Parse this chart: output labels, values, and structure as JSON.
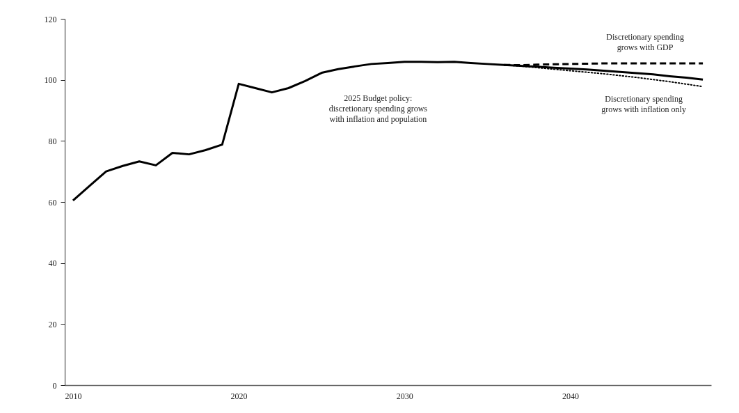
{
  "chart_data": {
    "type": "line",
    "x": [
      2010,
      2011,
      2012,
      2013,
      2014,
      2015,
      2016,
      2017,
      2018,
      2019,
      2020,
      2021,
      2022,
      2023,
      2024,
      2025,
      2026,
      2027,
      2028,
      2029,
      2030,
      2031,
      2032,
      2033,
      2034,
      2035,
      2036,
      2037,
      2038,
      2039,
      2040,
      2041,
      2042,
      2043,
      2044,
      2045,
      2046,
      2047,
      2048
    ],
    "series": [
      {
        "name": "2025 Budget policy:\ndiscretionary spending grows\nwith inflation and population",
        "color": "#000000",
        "line_style": "solid",
        "values": [
          60.5,
          65.3,
          70.0,
          71.8,
          73.3,
          72.0,
          76.1,
          75.6,
          77.0,
          78.8,
          98.7,
          97.3,
          95.9,
          97.3,
          99.6,
          102.3,
          103.5,
          104.4,
          105.2,
          105.5,
          105.9,
          105.9,
          105.8,
          105.9,
          105.5,
          105.2,
          104.9,
          104.6,
          104.3,
          104.0,
          103.7,
          103.4,
          103.0,
          102.6,
          102.2,
          101.8,
          101.2,
          100.7,
          100.1
        ]
      },
      {
        "name": "Discretionary spending\ngrows with GDP",
        "color": "#000000",
        "line_style": "dashed",
        "x": [
          2036,
          2037,
          2038,
          2039,
          2040,
          2041,
          2042,
          2043,
          2044,
          2045,
          2046,
          2047,
          2048
        ],
        "values": [
          104.9,
          104.8,
          105.0,
          105.1,
          105.2,
          105.3,
          105.4,
          105.4,
          105.4,
          105.4,
          105.4,
          105.4,
          105.4
        ]
      },
      {
        "name": "Discretionary spending\ngrows with inflation only",
        "color": "#000000",
        "line_style": "dotted",
        "x": [
          2036,
          2037,
          2038,
          2039,
          2040,
          2041,
          2042,
          2043,
          2044,
          2045,
          2046,
          2047,
          2048
        ],
        "values": [
          104.9,
          104.5,
          104.0,
          103.5,
          103.0,
          102.5,
          102.0,
          101.4,
          100.8,
          100.1,
          99.4,
          98.6,
          97.8
        ]
      }
    ],
    "xlim": [
      2009.5,
      2048.5
    ],
    "xticks": [
      2010,
      2020,
      2030,
      2040
    ],
    "ylim": [
      0,
      120
    ],
    "yticks": [
      0,
      20,
      40,
      60,
      80,
      100,
      120
    ]
  }
}
